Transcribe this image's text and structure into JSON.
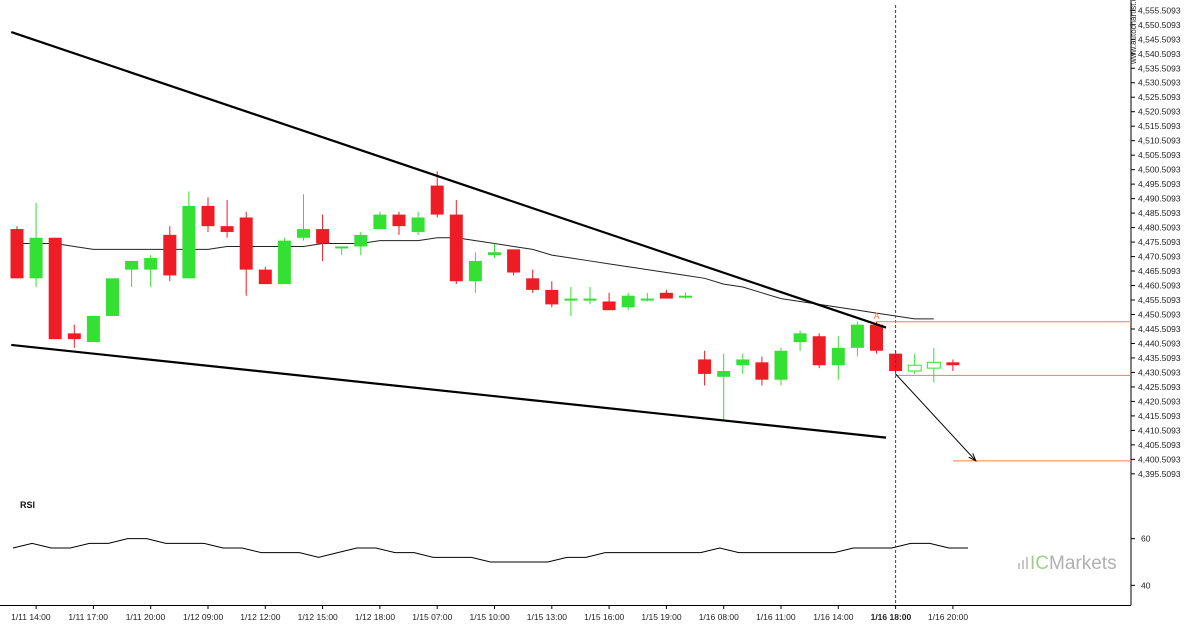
{
  "chart_data": {
    "type": "candlestick",
    "watermark": "www.autochartist.com",
    "brand": {
      "ic": "IC",
      "markets": "Markets"
    },
    "colors": {
      "up": "#33e033",
      "down": "#ee1c24",
      "pattern_line": "#000000",
      "level_line": "#f08040",
      "ma_line": "#222222",
      "rsi_line": "#000000"
    },
    "y_axis": {
      "range": [
        4392.0,
        4557.0
      ],
      "ticks": [
        "4,555.5093",
        "4,550.5093",
        "4,545.5093",
        "4,540.5093",
        "4,535.5093",
        "4,530.5093",
        "4,525.5093",
        "4,520.5093",
        "4,515.5093",
        "4,510.5093",
        "4,505.5093",
        "4,500.5093",
        "4,495.5093",
        "4,490.5093",
        "4,485.5093",
        "4,480.5093",
        "4,475.5093",
        "4,470.5093",
        "4,465.5093",
        "4,460.5093",
        "4,455.5093",
        "4,450.5093",
        "4,445.5093",
        "4,440.5093",
        "4,435.5093",
        "4,430.5093",
        "4,425.5093",
        "4,420.5093",
        "4,415.5093",
        "4,410.5093",
        "4,405.5093",
        "4,400.5093",
        "4,395.5093"
      ]
    },
    "x_ticks": [
      {
        "label": "1/11 14:00",
        "bar": 1
      },
      {
        "label": "1/11 17:00",
        "bar": 4
      },
      {
        "label": "1/11 20:00",
        "bar": 7
      },
      {
        "label": "1/12 09:00",
        "bar": 10
      },
      {
        "label": "1/12 12:00",
        "bar": 13
      },
      {
        "label": "1/12 15:00",
        "bar": 16
      },
      {
        "label": "1/12 18:00",
        "bar": 19
      },
      {
        "label": "1/15 07:00",
        "bar": 22
      },
      {
        "label": "1/15 10:00",
        "bar": 25
      },
      {
        "label": "1/15 13:00",
        "bar": 28
      },
      {
        "label": "1/15 16:00",
        "bar": 31
      },
      {
        "label": "1/15 19:00",
        "bar": 34
      },
      {
        "label": "1/16 08:00",
        "bar": 37
      },
      {
        "label": "1/16 11:00",
        "bar": 40
      },
      {
        "label": "1/16 14:00",
        "bar": 43
      },
      {
        "label": "1/16 18:00",
        "bar": 46,
        "bold": true
      },
      {
        "label": "1/16 20:00",
        "bar": 49
      }
    ],
    "candles": [
      {
        "o": 4480,
        "h": 4481,
        "l": 4463,
        "c": 4463
      },
      {
        "o": 4463,
        "h": 4489,
        "l": 4460,
        "c": 4477
      },
      {
        "o": 4477,
        "h": 4477,
        "l": 4442,
        "c": 4442
      },
      {
        "o": 4444,
        "h": 4447,
        "l": 4439,
        "c": 4442
      },
      {
        "o": 4441,
        "h": 4450,
        "l": 4441,
        "c": 4450
      },
      {
        "o": 4450,
        "h": 4463,
        "l": 4450,
        "c": 4463
      },
      {
        "o": 4466,
        "h": 4468,
        "l": 4460,
        "c": 4469
      },
      {
        "o": 4466,
        "h": 4471,
        "l": 4460,
        "c": 4470
      },
      {
        "o": 4478,
        "h": 4481,
        "l": 4462,
        "c": 4464
      },
      {
        "o": 4463,
        "h": 4493,
        "l": 4463,
        "c": 4488
      },
      {
        "o": 4488,
        "h": 4491,
        "l": 4479,
        "c": 4481
      },
      {
        "o": 4481,
        "h": 4490,
        "l": 4477,
        "c": 4479
      },
      {
        "o": 4484,
        "h": 4486,
        "l": 4457,
        "c": 4466
      },
      {
        "o": 4466,
        "h": 4467,
        "l": 4461,
        "c": 4461
      },
      {
        "o": 4461,
        "h": 4477,
        "l": 4461,
        "c": 4476
      },
      {
        "o": 4477,
        "h": 4492,
        "l": 4476,
        "c": 4480
      },
      {
        "o": 4480,
        "h": 4485,
        "l": 4469,
        "c": 4475
      },
      {
        "o": 4474,
        "h": 4474,
        "l": 4471,
        "c": 4474
      },
      {
        "o": 4474,
        "h": 4479,
        "l": 4471,
        "c": 4478
      },
      {
        "o": 4480,
        "h": 4486,
        "l": 4480,
        "c": 4485
      },
      {
        "o": 4485,
        "h": 4486,
        "l": 4478,
        "c": 4481
      },
      {
        "o": 4479,
        "h": 4486,
        "l": 4478,
        "c": 4484
      },
      {
        "o": 4495,
        "h": 4500,
        "l": 4484,
        "c": 4485
      },
      {
        "o": 4485,
        "h": 4490,
        "l": 4461,
        "c": 4462
      },
      {
        "o": 4462,
        "h": 4472,
        "l": 4458,
        "c": 4469
      },
      {
        "o": 4471,
        "h": 4475,
        "l": 4470,
        "c": 4472
      },
      {
        "o": 4473,
        "h": 4473,
        "l": 4464,
        "c": 4465
      },
      {
        "o": 4463,
        "h": 4466,
        "l": 4458,
        "c": 4459
      },
      {
        "o": 4459,
        "h": 4462,
        "l": 4453,
        "c": 4454
      },
      {
        "o": 4456,
        "h": 4460,
        "l": 4450,
        "c": 4456
      },
      {
        "o": 4456,
        "h": 4460,
        "l": 4454,
        "c": 4456
      },
      {
        "o": 4455,
        "h": 4458,
        "l": 4452,
        "c": 4452
      },
      {
        "o": 4453,
        "h": 4458,
        "l": 4452,
        "c": 4457
      },
      {
        "o": 4456,
        "h": 4458,
        "l": 4455,
        "c": 4456
      },
      {
        "o": 4458,
        "h": 4459,
        "l": 4456,
        "c": 4456
      },
      {
        "o": 4457,
        "h": 4458,
        "l": 4456,
        "c": 4457
      },
      {
        "o": 4435,
        "h": 4438,
        "l": 4426,
        "c": 4430
      },
      {
        "o": 4429,
        "h": 4437,
        "l": 4414,
        "c": 4431
      },
      {
        "o": 4433,
        "h": 4437,
        "l": 4430,
        "c": 4435
      },
      {
        "o": 4434,
        "h": 4436,
        "l": 4426,
        "c": 4428
      },
      {
        "o": 4428,
        "h": 4439,
        "l": 4426,
        "c": 4438
      },
      {
        "o": 4441,
        "h": 4445,
        "l": 4438,
        "c": 4444
      },
      {
        "o": 4443,
        "h": 4444,
        "l": 4432,
        "c": 4433
      },
      {
        "o": 4433,
        "h": 4443,
        "l": 4428,
        "c": 4439
      },
      {
        "o": 4439,
        "h": 4448,
        "l": 4436,
        "c": 4447
      },
      {
        "o": 4447,
        "h": 4448,
        "l": 4437,
        "c": 4438
      },
      {
        "o": 4437,
        "h": 4438,
        "l": 4430,
        "c": 4431
      },
      {
        "o": 4431,
        "h": 4437,
        "l": 4430,
        "c": 4433
      },
      {
        "o": 4432,
        "h": 4439,
        "l": 4427,
        "c": 4434
      },
      {
        "o": 4434,
        "h": 4435,
        "l": 4431,
        "c": 4433
      }
    ],
    "hollow_from_bar": 47,
    "moving_average": [
      4475,
      4475,
      4475,
      4474,
      4473,
      4473,
      4473,
      4473,
      4473,
      4473,
      4473,
      4474,
      4474,
      4474,
      4474,
      4474,
      4475,
      4475,
      4475,
      4476,
      4476,
      4476,
      4477,
      4477,
      4476,
      4475,
      4474,
      4473,
      4471,
      4470,
      4469,
      4468,
      4467,
      4466,
      4465,
      4464,
      4463,
      4461,
      4460,
      4458,
      4456,
      4455,
      4454,
      4453,
      4452,
      4451,
      4450,
      4449,
      4449
    ],
    "pattern": {
      "name": "Falling Wedge",
      "upper_line": [
        {
          "bar": -0.3,
          "y": 4548
        },
        {
          "bar": 45.5,
          "y": 4446
        }
      ],
      "lower_line": [
        {
          "bar": -0.3,
          "y": 4440
        },
        {
          "bar": 45.5,
          "y": 4408
        }
      ],
      "vertical_marker_bar": 46,
      "breakout_label": "A",
      "resistance_level": 4448,
      "entry_level": 4429.5,
      "target_level": 4400,
      "target_arrow": {
        "from": {
          "bar": 46,
          "y": 4430
        },
        "to": {
          "bar": 50.2,
          "y": 4400
        }
      }
    },
    "rsi": {
      "label": "RSI",
      "range": [
        38,
        68
      ],
      "ticks": [
        60,
        40
      ],
      "values": [
        56,
        58,
        56,
        56,
        58,
        58,
        60,
        60,
        58,
        58,
        58,
        56,
        56,
        54,
        54,
        54,
        52,
        54,
        56,
        56,
        54,
        54,
        52,
        52,
        52,
        50,
        50,
        50,
        50,
        52,
        52,
        54,
        54,
        54,
        54,
        54,
        54,
        56,
        54,
        54,
        54,
        54,
        54,
        54,
        56,
        56,
        56,
        58,
        58,
        56,
        56
      ]
    }
  }
}
